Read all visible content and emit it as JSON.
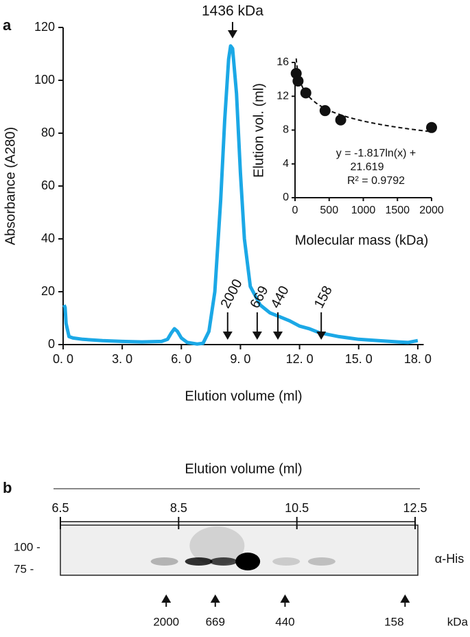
{
  "chart_data": [
    {
      "type": "line",
      "panel": "a",
      "xlabel": "Elution volume (ml)",
      "ylabel": "Absorbance (A280)",
      "color": "#1ba8e6",
      "x": [
        0.05,
        0.1,
        0.15,
        0.3,
        0.5,
        1,
        2,
        3,
        4,
        5,
        5.3,
        5.5,
        5.65,
        5.8,
        6,
        6.3,
        6.8,
        7.1,
        7.4,
        7.7,
        8,
        8.2,
        8.4,
        8.5,
        8.6,
        8.8,
        9,
        9.2,
        9.5,
        10,
        10.5,
        11,
        11.5,
        12,
        12.5,
        13,
        14,
        15,
        16,
        17,
        17.5,
        18
      ],
      "values": [
        15,
        14,
        8,
        3,
        2.5,
        2,
        1.5,
        1.2,
        1,
        1.2,
        2,
        4.5,
        6,
        5,
        2.5,
        0.8,
        0.2,
        0.5,
        5,
        20,
        55,
        85,
        108,
        113,
        112,
        95,
        65,
        40,
        22,
        15,
        12,
        10.5,
        9,
        7,
        6,
        4.5,
        3,
        2,
        1.5,
        1,
        0.8,
        1.5
      ],
      "xlim": [
        0,
        18.3
      ],
      "xticks": [
        {
          "value": 0,
          "label": "0. 0"
        },
        {
          "value": 3,
          "label": "3. 0"
        },
        {
          "value": 6,
          "label": "6. 0"
        },
        {
          "value": 9,
          "label": "9. 0"
        },
        {
          "value": 12,
          "label": "12. 0"
        },
        {
          "value": 15,
          "label": "15. 0"
        },
        {
          "value": 18,
          "label": "18. 0"
        }
      ],
      "ylim": [
        0,
        120
      ],
      "yticks": [
        0,
        20,
        40,
        60,
        80,
        100,
        120
      ],
      "peak": {
        "label": "1436 kDa",
        "x": 8.6
      },
      "markers": [
        {
          "label": "2000",
          "x": 8.35
        },
        {
          "label": "669",
          "x": 9.85
        },
        {
          "label": "440",
          "x": 10.9
        },
        {
          "label": "158",
          "x": 13.1
        }
      ]
    },
    {
      "type": "scatter",
      "xlabel": "Molecular mass (kDa)",
      "ylabel": "Elution vol. (ml)",
      "x": [
        17,
        44,
        158,
        440,
        669,
        2000
      ],
      "values": [
        14.7,
        13.8,
        12.4,
        10.3,
        9.2,
        8.3
      ],
      "xlim": [
        0,
        2000
      ],
      "xticks": [
        0,
        500,
        1000,
        1500,
        2000
      ],
      "ylim": [
        0,
        16
      ],
      "yticks": [
        0,
        4,
        8,
        12,
        16
      ],
      "trendline": {
        "slope": -1.817,
        "intercept": 21.619
      },
      "equation": [
        "y = -1.817ln(x) +",
        "21.619",
        "R² = 0.9792"
      ]
    },
    {
      "type": "blot",
      "panel": "b",
      "title": "Elution volume (ml)",
      "antibody": "α-His",
      "xlim": [
        6.5,
        12.5
      ],
      "xticks": [
        6.5,
        8.5,
        10.5,
        12.5
      ],
      "size_markers": [
        {
          "label": "100 -",
          "kda": 100
        },
        {
          "label": "75 -",
          "kda": 75
        }
      ],
      "x": [
        8.26,
        8.84,
        9.26,
        9.67,
        10.32,
        10.92
      ],
      "values": [
        0.25,
        0.8,
        0.7,
        1,
        0.15,
        0.2
      ],
      "standards": [
        {
          "label": "2000",
          "x": 8.29
        },
        {
          "label": "669",
          "x": 9.12
        },
        {
          "label": "440",
          "x": 10.3
        },
        {
          "label": "158",
          "x": 12.33
        }
      ],
      "unit": "kDa"
    }
  ]
}
